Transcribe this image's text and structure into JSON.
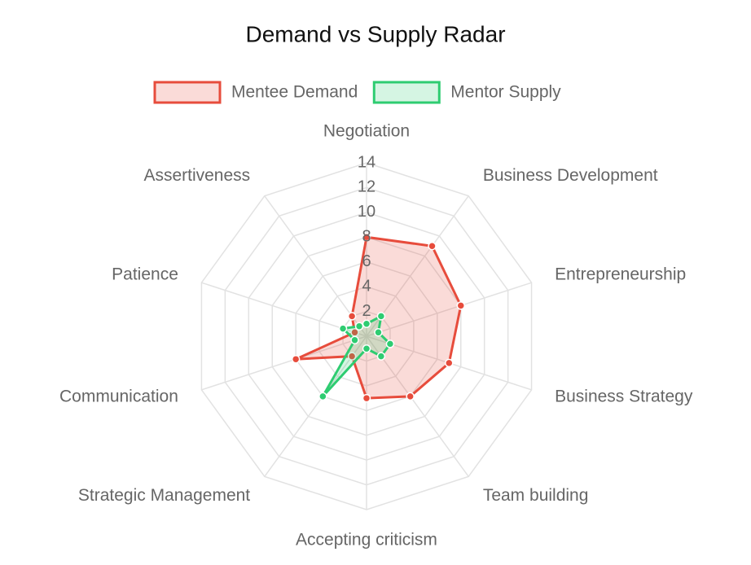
{
  "chart_data": {
    "type": "radar",
    "title": "Demand vs Supply Radar",
    "categories": [
      "Negotiation",
      "Business Development",
      "Entrepreneurship",
      "Business Strategy",
      "Team building",
      "Accepting criticism",
      "Strategic Management",
      "Communication",
      "Patience",
      "Assertiveness"
    ],
    "series": [
      {
        "name": "Mentee Demand",
        "color": "#e74c3c",
        "values": [
          8,
          9,
          8,
          7,
          6,
          5,
          2,
          6,
          1,
          2
        ]
      },
      {
        "name": "Mentor Supply",
        "color": "#2ecc71",
        "values": [
          1,
          2,
          1,
          2,
          2,
          1,
          6,
          1,
          2,
          1
        ]
      }
    ],
    "rlim": [
      0,
      14
    ],
    "rticks": [
      2,
      4,
      6,
      8,
      10,
      12,
      14
    ],
    "grid": true
  }
}
